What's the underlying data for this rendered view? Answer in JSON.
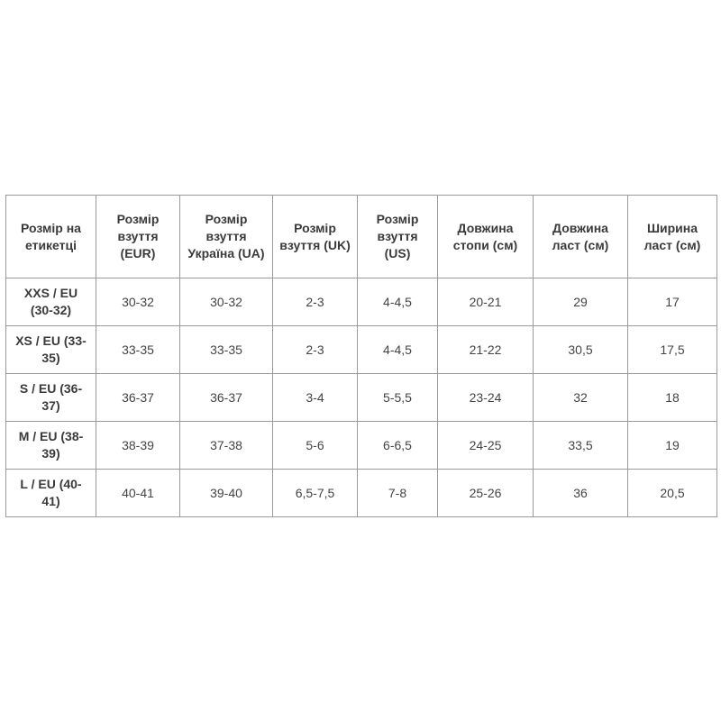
{
  "table": {
    "headers": [
      "Розмір на етикетці",
      "Розмір взуття (EUR)",
      "Розмір взуття Україна (UA)",
      "Розмір взуття (UK)",
      "Розмір взуття (US)",
      "Довжина стопи (см)",
      "Довжина ласт (см)",
      "Ширина ласт (см)"
    ],
    "rows": [
      [
        "XXS / EU (30-32)",
        "30-32",
        "30-32",
        "2-3",
        "4-4,5",
        "20-21",
        "29",
        "17"
      ],
      [
        "XS / EU (33-35)",
        "33-35",
        "33-35",
        "2-3",
        "4-4,5",
        "21-22",
        "30,5",
        "17,5"
      ],
      [
        "S / EU (36-37)",
        "36-37",
        "36-37",
        "3-4",
        "5-5,5",
        "23-24",
        "32",
        "18"
      ],
      [
        "M / EU (38-39)",
        "38-39",
        "37-38",
        "5-6",
        "6-6,5",
        "24-25",
        "33,5",
        "19"
      ],
      [
        "L / EU (40-41)",
        "40-41",
        "39-40",
        "6,5-7,5",
        "7-8",
        "25-26",
        "36",
        "20,5"
      ]
    ]
  }
}
